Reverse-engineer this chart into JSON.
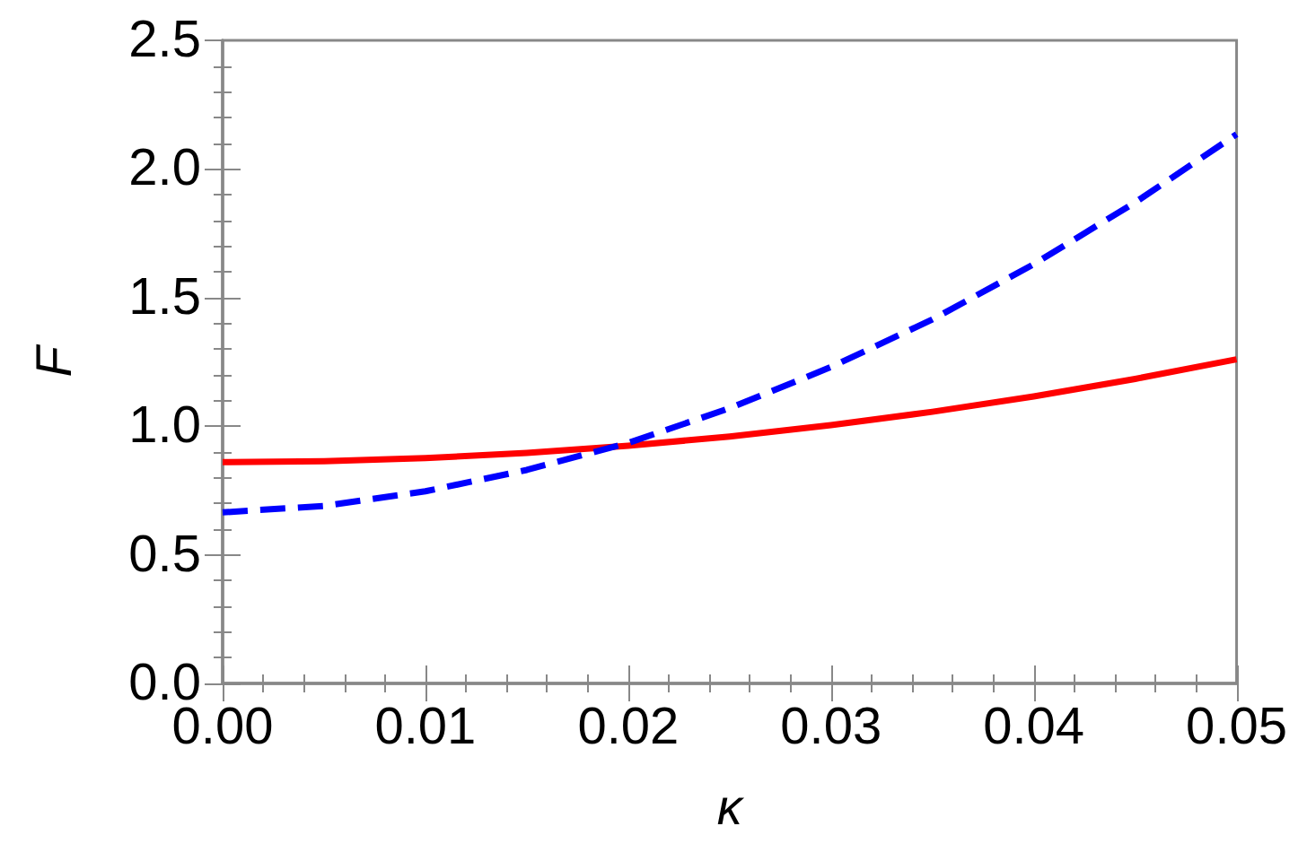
{
  "chart_data": {
    "type": "line",
    "xlabel": "κ",
    "ylabel": "F",
    "x": [
      0,
      0.005,
      0.01,
      0.015,
      0.02,
      0.025,
      0.03,
      0.035,
      0.04,
      0.045,
      0.05
    ],
    "series": [
      {
        "color": "#ff0000",
        "line_style": "solid",
        "values": [
          0.86,
          0.864,
          0.876,
          0.896,
          0.924,
          0.96,
          1.004,
          1.056,
          1.116,
          1.184,
          1.26
        ]
      },
      {
        "color": "#0000ff",
        "line_style": "dashed",
        "values": [
          0.665,
          0.69,
          0.747,
          0.83,
          0.935,
          1.07,
          1.23,
          1.415,
          1.63,
          1.87,
          2.135
        ]
      }
    ],
    "xlim": [
      0,
      0.05
    ],
    "xticks": [
      {
        "value": 0,
        "label": "0.00"
      },
      {
        "value": 0.01,
        "label": "0.01"
      },
      {
        "value": 0.02,
        "label": "0.02"
      },
      {
        "value": 0.03,
        "label": "0.03"
      },
      {
        "value": 0.04,
        "label": "0.04"
      },
      {
        "value": 0.05,
        "label": "0.05"
      }
    ],
    "ylim": [
      0,
      2.5
    ],
    "yticks": [
      {
        "value": 0,
        "label": "0.0"
      },
      {
        "value": 0.5,
        "label": "0.5"
      },
      {
        "value": 1,
        "label": "1.0"
      },
      {
        "value": 1.5,
        "label": "1.5"
      },
      {
        "value": 2,
        "label": "2.0"
      },
      {
        "value": 2.5,
        "label": "2.5"
      }
    ],
    "grid": false,
    "marker": "none"
  }
}
